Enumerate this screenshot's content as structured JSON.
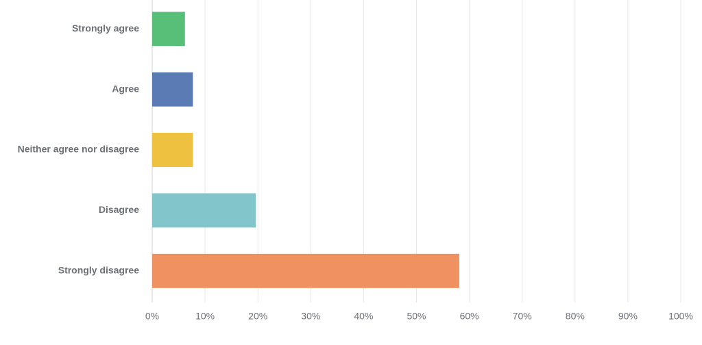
{
  "chart_data": {
    "type": "bar",
    "orientation": "horizontal",
    "categories": [
      "Strongly agree",
      "Agree",
      "Neither agree nor disagree",
      "Disagree",
      "Strongly disagree"
    ],
    "values": [
      6.2,
      7.7,
      7.7,
      19.6,
      58.1
    ],
    "colors": [
      "#57bf78",
      "#5b7bb4",
      "#efc141",
      "#82c6cb",
      "#ef9160"
    ],
    "xlim": [
      0,
      100
    ],
    "xticks": [
      {
        "value": 0,
        "label": "0%"
      },
      {
        "value": 10,
        "label": "10%"
      },
      {
        "value": 20,
        "label": "20%"
      },
      {
        "value": 30,
        "label": "30%"
      },
      {
        "value": 40,
        "label": "40%"
      },
      {
        "value": 50,
        "label": "50%"
      },
      {
        "value": 60,
        "label": "60%"
      },
      {
        "value": 70,
        "label": "70%"
      },
      {
        "value": 80,
        "label": "80%"
      },
      {
        "value": 90,
        "label": "90%"
      },
      {
        "value": 100,
        "label": "100%"
      }
    ],
    "grid": true
  }
}
